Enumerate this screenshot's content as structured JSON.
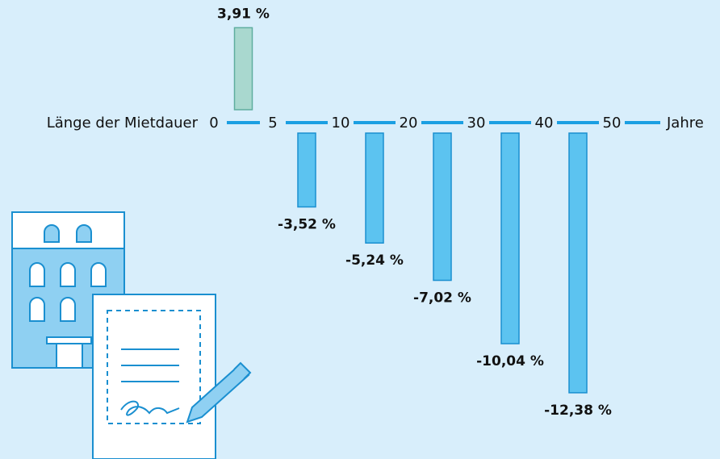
{
  "chart_data": {
    "type": "bar",
    "x_label": "Länge der Mietdauer",
    "x_unit": "Jahre",
    "boundaries": [
      0,
      5,
      10,
      20,
      30,
      40,
      50
    ],
    "values": [
      3.91,
      -3.52,
      -5.24,
      -7.02,
      -10.04,
      -12.38
    ],
    "value_labels": [
      "3,91 %",
      "-3,52 %",
      "-5,24 %",
      "-7,02 %",
      "-10,04 %",
      "-12,38 %"
    ],
    "colors": [
      "#a9d8cf",
      "#5cc3f0",
      "#5cc3f0",
      "#5cc3f0",
      "#5cc3f0",
      "#5cc3f0"
    ],
    "axis_color": "#1b9fe2"
  }
}
